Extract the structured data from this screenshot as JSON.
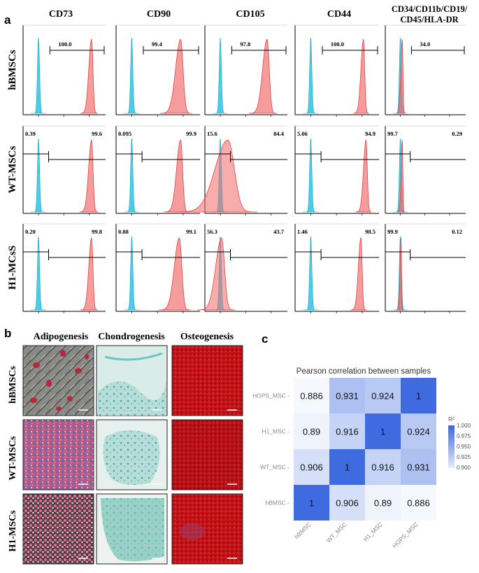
{
  "panel_a": {
    "letter": "a",
    "markers": [
      "CD73",
      "CD90",
      "CD105",
      "CD44",
      "CD34/CD11b/CD19/",
      "CD45/HLA-DR"
    ],
    "rows": [
      {
        "label": "hBMSCs",
        "cells": [
          {
            "left": "",
            "right": "100.0",
            "peak": 4.2,
            "width": 0.28,
            "alpha": 0.85
          },
          {
            "left": "",
            "right": "99.4",
            "peak": 3.8,
            "width": 0.5,
            "alpha": 0.85
          },
          {
            "left": "",
            "right": "97.8",
            "peak": 3.7,
            "width": 0.45,
            "alpha": 0.85
          },
          {
            "left": "",
            "right": "100.0",
            "peak": 4.1,
            "width": 0.25,
            "alpha": 0.85
          },
          {
            "left": "",
            "right": "34.0",
            "peak": 0.15,
            "width": 0.15,
            "alpha": 0.9
          }
        ]
      },
      {
        "label": "WT-MSCs",
        "cells": [
          {
            "left": "0.39",
            "right": "99.6",
            "peak": 4.2,
            "width": 0.3,
            "alpha": 0.85
          },
          {
            "left": "0.095",
            "right": "99.9",
            "peak": 3.8,
            "width": 0.4,
            "alpha": 0.85
          },
          {
            "left": "15.6",
            "right": "84.4",
            "peak": 0.6,
            "width": 1.3,
            "alpha": 0.7
          },
          {
            "left": "5.06",
            "right": "94.9",
            "peak": 4.3,
            "width": 0.25,
            "alpha": 0.85
          },
          {
            "left": "99.7",
            "right": "0.29",
            "peak": 0.15,
            "width": 0.12,
            "alpha": 0.9
          }
        ]
      },
      {
        "label": "H1-MCsS",
        "cells": [
          {
            "left": "0.20",
            "right": "99.8",
            "peak": 4.2,
            "width": 0.28,
            "alpha": 0.85
          },
          {
            "left": "0.88",
            "right": "99.1",
            "peak": 3.7,
            "width": 0.5,
            "alpha": 0.85
          },
          {
            "left": "56.3",
            "right": "43.7",
            "peak": 0.1,
            "width": 0.6,
            "alpha": 0.7
          },
          {
            "left": "1.46",
            "right": "98.5",
            "peak": 3.9,
            "width": 0.25,
            "alpha": 0.85
          },
          {
            "left": "99.9",
            "right": "0.12",
            "peak": 0.05,
            "width": 0.1,
            "alpha": 0.9
          }
        ]
      }
    ],
    "colors": {
      "isotype": "#36c8e6",
      "stained": "#f26d6d"
    }
  },
  "panel_b": {
    "letter": "b",
    "columns": [
      "Adipogenesis",
      "Chondrogenesis",
      "Osteogenesis"
    ],
    "rows": [
      "hBMSCs",
      "WT-MSCs",
      "H1-MSCs"
    ]
  },
  "panel_c": {
    "letter": "c",
    "chart_data": {
      "type": "heatmap",
      "title": "Pearson correlation between samples",
      "x_labels": [
        "hBMSC",
        "WT_MSC",
        "H1_MSC",
        "HGPS_MSC"
      ],
      "y_labels": [
        "HGPS_MSC",
        "H1_MSC",
        "WT_MSC",
        "hBMSC"
      ],
      "values": [
        [
          "0.886",
          "0.931",
          "0.924",
          "1"
        ],
        [
          "0.89",
          "0.916",
          "1",
          "0.924"
        ],
        [
          "0.906",
          "1",
          "0.916",
          "0.931"
        ],
        [
          "1",
          "0.906",
          "0.89",
          "0.886"
        ]
      ],
      "legend_title": "R²",
      "legend_ticks": [
        "1.000",
        "0.975",
        "0.950",
        "0.925",
        "0.900"
      ],
      "color_min": 0.88,
      "color_max": 1.0,
      "low_color": "#ffffff",
      "high_color": "#3e6be0"
    }
  }
}
